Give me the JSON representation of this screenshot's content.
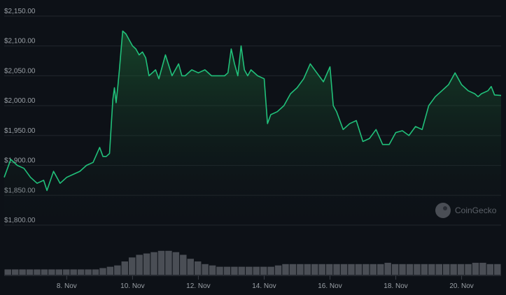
{
  "chart_data": {
    "type": "area",
    "title": "",
    "xlabel": "",
    "ylabel": "",
    "ylim": [
      1800,
      2150
    ],
    "yticks": [
      "$2,150.00",
      "$2,100.00",
      "$2,050.00",
      "$2,000.00",
      "$1,950.00",
      "$1,900.00",
      "$1,850.00",
      "$1,800.00"
    ],
    "ytick_values": [
      2150,
      2100,
      2050,
      2000,
      1950,
      1900,
      1850,
      1800
    ],
    "xticks": [
      "8. Nov",
      "10. Nov",
      "12. Nov",
      "14. Nov",
      "16. Nov",
      "18. Nov",
      "20. Nov"
    ],
    "xtick_days": [
      8,
      10,
      12,
      14,
      16,
      18,
      20
    ],
    "xlim_days": [
      6.1,
      21.2
    ],
    "grid": true,
    "legend": "none",
    "series": [
      {
        "x_days": [
          6.1,
          6.3,
          6.5,
          6.7,
          6.9,
          7.1,
          7.3,
          7.4,
          7.6,
          7.8,
          8.0,
          8.2,
          8.4,
          8.6,
          8.8,
          9.0,
          9.1,
          9.2,
          9.3,
          9.4,
          9.45,
          9.5,
          9.55,
          9.6,
          9.7,
          9.8,
          9.9,
          10.0,
          10.1,
          10.2,
          10.3,
          10.4,
          10.5,
          10.6,
          10.7,
          10.8,
          11.0,
          11.2,
          11.4,
          11.5,
          11.6,
          11.8,
          12.0,
          12.2,
          12.4,
          12.6,
          12.8,
          12.9,
          13.0,
          13.1,
          13.2,
          13.3,
          13.4,
          13.5,
          13.6,
          13.8,
          14.0,
          14.1,
          14.2,
          14.4,
          14.6,
          14.8,
          15.0,
          15.2,
          15.4,
          15.6,
          15.8,
          16.0,
          16.1,
          16.2,
          16.3,
          16.4,
          16.6,
          16.8,
          17.0,
          17.2,
          17.4,
          17.6,
          17.8,
          18.0,
          18.2,
          18.4,
          18.6,
          18.8,
          19.0,
          19.2,
          19.4,
          19.6,
          19.8,
          20.0,
          20.2,
          20.4,
          20.5,
          20.6,
          20.8,
          20.9,
          21.0,
          21.2
        ],
        "values": [
          1880,
          1910,
          1900,
          1895,
          1880,
          1870,
          1875,
          1858,
          1890,
          1870,
          1880,
          1885,
          1890,
          1900,
          1905,
          1930,
          1915,
          1915,
          1920,
          2010,
          2030,
          2005,
          2030,
          2060,
          2125,
          2120,
          2110,
          2100,
          2095,
          2085,
          2090,
          2080,
          2050,
          2055,
          2060,
          2045,
          2085,
          2050,
          2070,
          2050,
          2050,
          2060,
          2055,
          2060,
          2050,
          2050,
          2050,
          2055,
          2095,
          2070,
          2050,
          2100,
          2060,
          2050,
          2060,
          2050,
          2045,
          1970,
          1985,
          1990,
          2000,
          2020,
          2030,
          2045,
          2070,
          2055,
          2040,
          2065,
          2000,
          1990,
          1975,
          1960,
          1970,
          1975,
          1940,
          1945,
          1960,
          1935,
          1935,
          1955,
          1958,
          1950,
          1965,
          1960,
          2000,
          2015,
          2025,
          2035,
          2055,
          2035,
          2025,
          2020,
          2015,
          2020,
          2025,
          2032,
          2018,
          2017
        ]
      }
    ],
    "volume_values": [
      0.2,
      0.2,
      0.2,
      0.2,
      0.2,
      0.2,
      0.2,
      0.2,
      0.2,
      0.2,
      0.2,
      0.2,
      0.2,
      0.25,
      0.3,
      0.35,
      0.5,
      0.65,
      0.75,
      0.8,
      0.85,
      0.9,
      0.9,
      0.85,
      0.75,
      0.6,
      0.5,
      0.4,
      0.35,
      0.3,
      0.3,
      0.3,
      0.3,
      0.3,
      0.3,
      0.3,
      0.3,
      0.35,
      0.4,
      0.4,
      0.4,
      0.4,
      0.4,
      0.4,
      0.4,
      0.4,
      0.4,
      0.4,
      0.4,
      0.4,
      0.4,
      0.4,
      0.45,
      0.4,
      0.4,
      0.4,
      0.4,
      0.4,
      0.4,
      0.4,
      0.4,
      0.4,
      0.4,
      0.4,
      0.45,
      0.45,
      0.4,
      0.4
    ]
  },
  "watermark": {
    "text": "CoinGecko"
  },
  "colors": {
    "background": "#0d1117",
    "line": "#21c07a",
    "grid": "#22272e",
    "volume": "#4a4e55",
    "tick_text": "#9aa0a6"
  }
}
